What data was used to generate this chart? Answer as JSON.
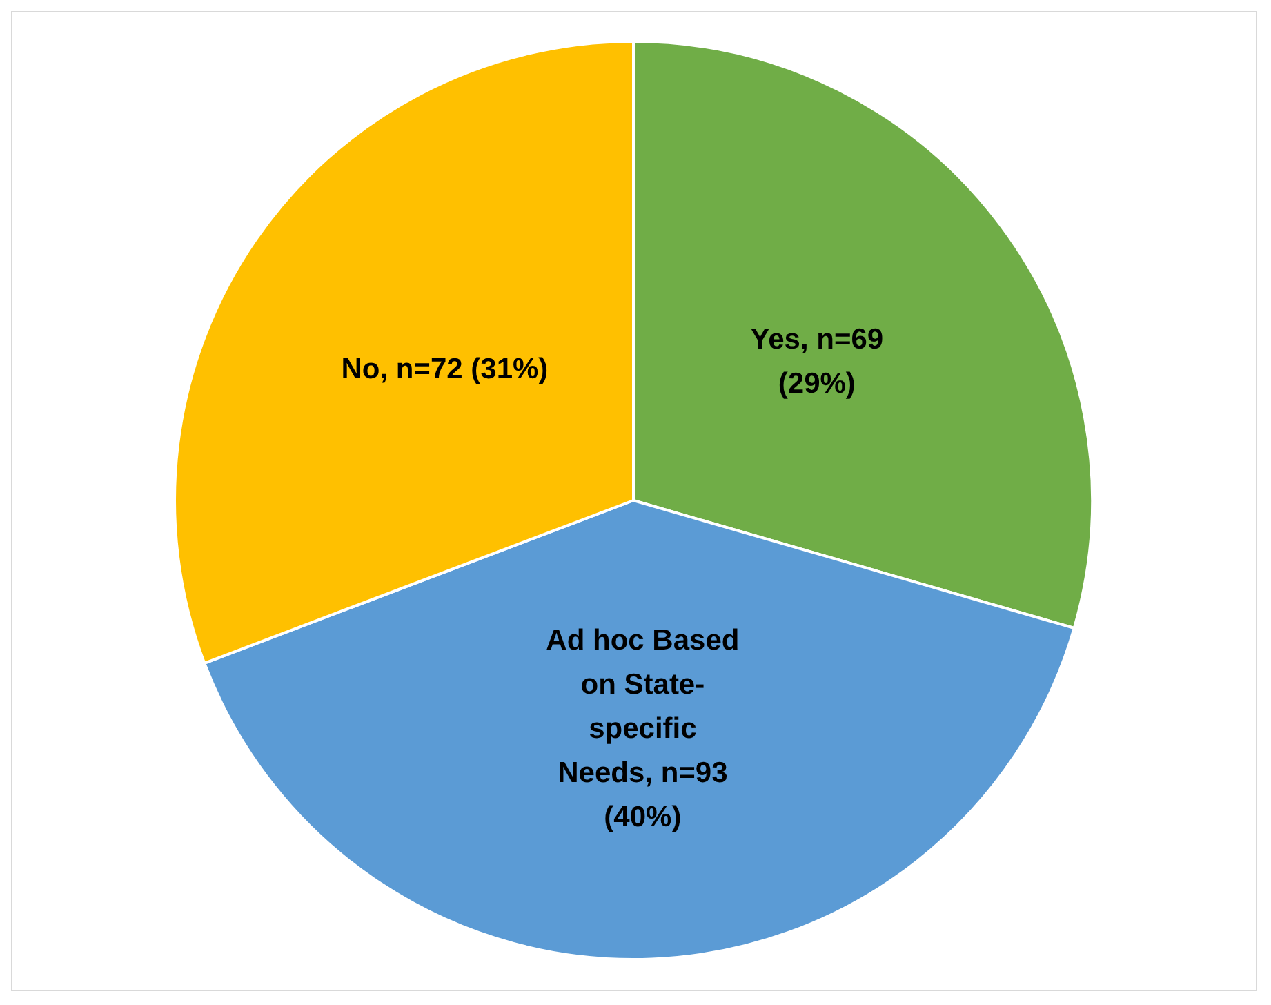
{
  "chart_data": {
    "type": "pie",
    "categories": [
      "Yes",
      "Ad hoc Based on State-specific Needs",
      "No"
    ],
    "values": [
      69,
      93,
      72
    ],
    "colors": [
      "#70ad47",
      "#5b9bd5",
      "#ffc000"
    ],
    "value_labels": [
      "n=69 (29%)",
      "n=93 (40%)",
      "n=72 (31%)"
    ],
    "legend": false
  }
}
